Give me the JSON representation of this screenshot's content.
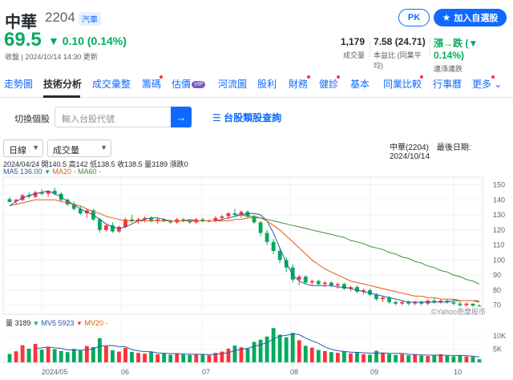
{
  "header": {
    "name": "中華",
    "code": "2204",
    "category": "汽車",
    "price": "69.5",
    "change": "▼ 0.10 (0.14%)",
    "timestamp": "收盤 | 2024/10/14 14:30 更新",
    "pk_label": "PK",
    "add_label": "加入自選股",
    "stats": [
      {
        "value": "1,179",
        "label": "成交量"
      },
      {
        "value": "7.58 (24.71)",
        "label": "本益比 (同業平均)"
      },
      {
        "value": "漲→跌 (▼ 0.14%)",
        "label": "連漲連跌"
      }
    ]
  },
  "tabs": [
    {
      "label": "走勢圖"
    },
    {
      "label": "技術分析"
    },
    {
      "label": "成交彙整"
    },
    {
      "label": "籌碼"
    },
    {
      "label": "估價",
      "badge": "VIP"
    },
    {
      "label": "河流圖"
    },
    {
      "label": "股利"
    },
    {
      "label": "財務"
    },
    {
      "label": "健診"
    },
    {
      "label": "基本"
    },
    {
      "label": "同業比較"
    },
    {
      "label": "行事曆"
    },
    {
      "label": "更多"
    }
  ],
  "search": {
    "label": "切換個股",
    "placeholder": "輸入台股代號",
    "sector_link": "台股類股查詢"
  },
  "controls": {
    "period": "日線",
    "indicator": "成交量",
    "info": "中華(2204)　最後日期: 2024/10/14"
  },
  "legend": {
    "ohlc": "2024/04/24 開140.5 高142 低138.5 收138.5 量3189 漲跌0",
    "ma5": "MA5 136.00",
    "ma20": "MA20 -",
    "ma60": "MA60 -",
    "vol": "量 3189",
    "mv5": "MV5 5923",
    "mv20": "MV20 -",
    "watermark": "©Yahoo奇摩股市"
  },
  "colors": {
    "up": "#ff333a",
    "down": "#00ab5e",
    "ma5": "#2b5aa5",
    "ma20": "#e8590c",
    "ma60": "#3d8b37",
    "accent": "#0f69ff"
  },
  "chart_data": {
    "type": "line",
    "price_axis": {
      "ticks": [
        150,
        140,
        130,
        120,
        110,
        100,
        90,
        80,
        70
      ],
      "ylim": [
        65,
        154
      ]
    },
    "volume_axis": {
      "ticks": [
        "10K",
        "5K"
      ],
      "values": [
        10000,
        5000
      ],
      "ylim": [
        0,
        14000
      ]
    },
    "x_ticks": [
      "2024/05",
      "06",
      "07",
      "08",
      "09",
      "10"
    ],
    "series": [
      {
        "name": "MA5",
        "values": [
          136,
          139,
          141,
          143,
          144,
          145,
          146,
          144,
          142,
          139,
          137,
          134,
          132,
          130,
          127,
          124,
          122,
          121,
          122,
          124,
          126,
          127,
          128,
          128,
          127,
          126,
          126,
          126,
          127,
          126,
          126,
          126,
          126,
          127,
          128,
          129,
          130,
          131,
          131,
          130,
          126,
          118,
          108,
          98,
          90,
          86,
          84,
          83,
          83,
          83,
          83,
          82,
          82,
          81,
          80,
          79,
          78,
          77,
          76,
          75,
          74,
          73,
          72,
          72,
          72,
          72,
          72,
          72,
          72,
          73,
          73,
          73,
          73,
          72
        ]
      },
      {
        "name": "MA20",
        "values": [
          136,
          137,
          138,
          139,
          140,
          140,
          140,
          140,
          139,
          138,
          137,
          136,
          134,
          132,
          131,
          129,
          128,
          127,
          126,
          126,
          126,
          126,
          126,
          126,
          126,
          126,
          126,
          126,
          126,
          126,
          126,
          126,
          126,
          126,
          126,
          127,
          127,
          128,
          128,
          128,
          126,
          123,
          120,
          116,
          112,
          108,
          104,
          100,
          97,
          94,
          92,
          90,
          88,
          86,
          85,
          84,
          83,
          82,
          81,
          80,
          79,
          78,
          77,
          76,
          76,
          75,
          75,
          74,
          74,
          74,
          73,
          73,
          73,
          73
        ]
      },
      {
        "name": "MA60",
        "values": [
          null,
          null,
          null,
          null,
          null,
          null,
          null,
          null,
          null,
          null,
          null,
          null,
          null,
          null,
          null,
          null,
          null,
          null,
          null,
          null,
          null,
          null,
          null,
          null,
          null,
          null,
          null,
          null,
          null,
          null,
          null,
          null,
          null,
          null,
          null,
          130,
          130,
          129,
          129,
          128,
          127,
          126,
          125,
          124,
          123,
          122,
          121,
          120,
          119,
          118,
          117,
          116,
          115,
          113,
          112,
          111,
          109,
          108,
          107,
          105,
          104,
          102,
          101,
          99,
          98,
          96,
          95,
          93,
          92,
          90,
          89,
          87,
          86,
          84
        ]
      }
    ],
    "ohlc": [
      [
        140.5,
        142,
        138.5,
        138.5
      ],
      [
        139,
        141,
        137,
        140
      ],
      [
        140,
        144,
        139,
        143
      ],
      [
        143,
        145,
        141,
        142
      ],
      [
        142,
        146,
        141,
        145
      ],
      [
        145,
        147,
        143,
        144
      ],
      [
        144,
        146,
        142,
        146
      ],
      [
        146,
        148,
        143,
        144
      ],
      [
        144,
        145,
        139,
        140
      ],
      [
        140,
        141,
        136,
        137
      ],
      [
        137,
        139,
        133,
        134
      ],
      [
        134,
        136,
        130,
        131
      ],
      [
        131,
        134,
        128,
        133
      ],
      [
        133,
        134,
        126,
        127
      ],
      [
        127,
        128,
        118,
        120
      ],
      [
        120,
        124,
        119,
        123
      ],
      [
        123,
        125,
        118,
        119
      ],
      [
        119,
        123,
        118,
        122
      ],
      [
        122,
        128,
        121,
        127
      ],
      [
        127,
        130,
        125,
        126
      ],
      [
        126,
        128,
        124,
        127
      ],
      [
        127,
        129,
        125,
        128
      ],
      [
        128,
        129,
        125,
        126
      ],
      [
        126,
        128,
        124,
        127
      ],
      [
        127,
        128,
        125,
        126
      ],
      [
        126,
        127,
        124,
        125
      ],
      [
        125,
        128,
        124,
        127
      ],
      [
        127,
        128,
        125,
        126
      ],
      [
        126,
        127,
        124,
        125
      ],
      [
        125,
        128,
        124,
        127
      ],
      [
        127,
        128,
        125,
        126
      ],
      [
        126,
        127,
        125,
        126
      ],
      [
        126,
        129,
        125,
        128
      ],
      [
        128,
        130,
        126,
        129
      ],
      [
        129,
        132,
        127,
        131
      ],
      [
        131,
        134,
        129,
        130
      ],
      [
        130,
        133,
        128,
        132
      ],
      [
        132,
        133,
        128,
        129
      ],
      [
        129,
        130,
        124,
        125
      ],
      [
        125,
        126,
        116,
        118
      ],
      [
        118,
        120,
        110,
        112
      ],
      [
        112,
        114,
        104,
        106
      ],
      [
        106,
        108,
        98,
        100
      ],
      [
        100,
        102,
        92,
        95
      ],
      [
        95,
        97,
        85,
        87
      ],
      [
        87,
        90,
        83,
        89
      ],
      [
        89,
        90,
        84,
        85
      ],
      [
        85,
        87,
        83,
        86
      ],
      [
        86,
        87,
        83,
        84
      ],
      [
        84,
        86,
        82,
        85
      ],
      [
        85,
        86,
        82,
        83
      ],
      [
        83,
        85,
        81,
        84
      ],
      [
        84,
        85,
        80,
        81
      ],
      [
        81,
        83,
        79,
        82
      ],
      [
        82,
        83,
        78,
        79
      ],
      [
        79,
        81,
        77,
        80
      ],
      [
        80,
        81,
        76,
        77
      ],
      [
        77,
        78,
        73,
        74
      ],
      [
        74,
        76,
        72,
        75
      ],
      [
        75,
        76,
        71,
        72
      ],
      [
        72,
        73,
        70,
        71
      ],
      [
        71,
        73,
        70,
        72
      ],
      [
        72,
        73,
        70,
        71
      ],
      [
        71,
        73,
        70,
        72
      ],
      [
        72,
        73,
        70,
        71
      ],
      [
        71,
        74,
        70,
        73
      ],
      [
        73,
        75,
        71,
        72
      ],
      [
        72,
        74,
        71,
        73
      ],
      [
        73,
        74,
        71,
        72
      ],
      [
        72,
        74,
        70,
        71
      ],
      [
        71,
        73,
        69,
        70
      ],
      [
        70,
        72,
        69,
        71
      ],
      [
        71,
        71,
        69,
        69.6
      ],
      [
        69.6,
        70.5,
        69,
        69.5
      ]
    ],
    "volume": [
      3189,
      4200,
      6500,
      5200,
      7000,
      4800,
      5600,
      5000,
      4300,
      3900,
      5100,
      4500,
      6200,
      5800,
      9200,
      6100,
      4600,
      4100,
      5500,
      4000,
      3600,
      3300,
      3900,
      3100,
      3500,
      2900,
      3400,
      3000,
      2800,
      3200,
      2900,
      2700,
      3600,
      4100,
      5200,
      6400,
      5700,
      5200,
      7800,
      8600,
      9800,
      13000,
      10500,
      9500,
      11200,
      8400,
      6300,
      5600,
      4700,
      4300,
      3900,
      3600,
      4200,
      3400,
      3900,
      3100,
      2900,
      4400,
      3600,
      3200,
      2800,
      3100,
      2700,
      3000,
      2600,
      2400,
      2800,
      3100,
      2500,
      2300,
      2600,
      2200,
      2100,
      1179
    ]
  }
}
